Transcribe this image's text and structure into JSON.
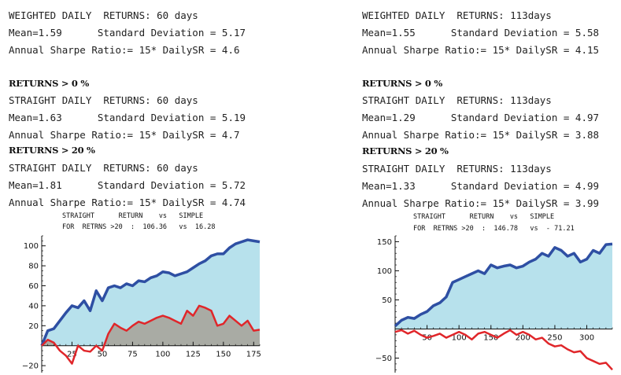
{
  "left": {
    "weighted": {
      "title": "WEIGHTED DAILY  RETURNS: 60 days",
      "line2": "Mean=1.59      Standard Deviation = 5.17",
      "line3": "Annual Sharpe Ratio:= 15* DailySR = 4.6"
    },
    "ret0_head": "RETURNS >  0 %",
    "straight0": {
      "title": "STRAIGHT DAILY  RETURNS: 60 days",
      "line2": "Mean=1.63      Standard Deviation = 5.19",
      "line3": "Annual Sharpe Ratio:= 15* DailySR = 4.7"
    },
    "ret20_head": "RETURNS > 20 %",
    "straight20": {
      "title": "STRAIGHT DAILY  RETURNS: 60 days",
      "line2": "Mean=1.81      Standard Deviation = 5.72",
      "line3": "Annual Sharpe Ratio:= 15* DailySR = 4.74"
    },
    "chart_title1": "STRAIGHT      RETURN    vs   SIMPLE",
    "chart_title2": "FOR  RETRNS >20  :  106.36   vs  16.28"
  },
  "right": {
    "weighted": {
      "title": "WEIGHTED DAILY  RETURNS: 113days",
      "line2": "Mean=1.55      Standard Deviation = 5.58",
      "line3": "Annual Sharpe Ratio:= 15* DailySR = 4.15"
    },
    "ret0_head": "RETURNS >  0 %",
    "straight0": {
      "title": "STRAIGHT DAILY  RETURNS: 113days",
      "line2": "Mean=1.29      Standard Deviation = 4.97",
      "line3": "Annual Sharpe Ratio:= 15* DailySR = 3.88"
    },
    "ret20_head": "RETURNS > 20 %",
    "straight20": {
      "title": "STRAIGHT DAILY  RETURNS: 113days",
      "line2": "Mean=1.33      Standard Deviation = 4.99",
      "line3": "Annual Sharpe Ratio:= 15* DailySR = 3.99"
    },
    "chart_title1": "STRAIGHT      RETURN    vs   SIMPLE",
    "chart_title2": "FOR  RETRNS >20  :  146.78   vs  - 71.21"
  },
  "chart_data": [
    {
      "type": "area",
      "x_ticks": [
        25,
        50,
        75,
        100,
        125,
        150,
        175
      ],
      "y_ticks": [
        -20,
        20,
        40,
        60,
        80,
        100
      ],
      "xlim": [
        0,
        180
      ],
      "ylim": [
        -27,
        110
      ],
      "colors": {
        "straight": "#2e4fa3",
        "simple": "#e0262a",
        "straight_fill": "#b7e1ec",
        "simple_fill": "#a9aba4"
      },
      "series": [
        {
          "x": [
            0,
            5,
            10,
            15,
            20,
            25,
            30,
            35,
            40,
            45,
            50,
            55,
            60,
            65,
            70,
            75,
            80,
            85,
            90,
            95,
            100,
            105,
            110,
            115,
            120,
            125,
            130,
            135,
            140,
            145,
            150,
            155,
            160,
            165,
            170,
            175,
            180
          ],
          "values": [
            0,
            15,
            17,
            25,
            33,
            40,
            38,
            45,
            35,
            55,
            45,
            58,
            60,
            58,
            62,
            60,
            65,
            64,
            68,
            70,
            74,
            73,
            70,
            72,
            74,
            78,
            82,
            85,
            90,
            92,
            92,
            98,
            102,
            104,
            106,
            105,
            104
          ]
        },
        {
          "x": [
            0,
            5,
            10,
            15,
            20,
            25,
            30,
            35,
            40,
            45,
            50,
            55,
            60,
            65,
            70,
            75,
            80,
            85,
            90,
            95,
            100,
            105,
            110,
            115,
            120,
            125,
            130,
            135,
            140,
            145,
            150,
            155,
            160,
            165,
            170,
            175,
            180
          ],
          "values": [
            0,
            6,
            3,
            -5,
            -10,
            -18,
            0,
            -5,
            -6,
            0,
            -5,
            12,
            22,
            18,
            15,
            20,
            24,
            22,
            25,
            28,
            30,
            28,
            25,
            22,
            35,
            30,
            40,
            38,
            35,
            20,
            22,
            30,
            25,
            20,
            25,
            15,
            16
          ]
        }
      ]
    },
    {
      "type": "area",
      "x_ticks": [
        50,
        100,
        150,
        200,
        250,
        300
      ],
      "y_ticks": [
        -50,
        50,
        100,
        150
      ],
      "xlim": [
        0,
        340
      ],
      "ylim": [
        -75,
        160
      ],
      "colors": {
        "straight": "#2e4fa3",
        "simple": "#e0262a",
        "straight_fill": "#b7e1ec"
      },
      "series": [
        {
          "x": [
            0,
            10,
            20,
            30,
            40,
            50,
            60,
            70,
            80,
            90,
            100,
            110,
            120,
            130,
            140,
            150,
            160,
            170,
            180,
            190,
            200,
            210,
            220,
            230,
            240,
            250,
            260,
            270,
            280,
            290,
            300,
            310,
            320,
            330,
            340
          ],
          "values": [
            5,
            15,
            20,
            18,
            25,
            30,
            40,
            45,
            55,
            80,
            85,
            90,
            95,
            100,
            95,
            110,
            105,
            108,
            110,
            105,
            108,
            115,
            120,
            130,
            125,
            140,
            135,
            125,
            130,
            115,
            120,
            135,
            130,
            145,
            146
          ]
        },
        {
          "x": [
            0,
            10,
            20,
            30,
            40,
            50,
            60,
            70,
            80,
            90,
            100,
            110,
            120,
            130,
            140,
            150,
            160,
            170,
            180,
            190,
            200,
            210,
            220,
            230,
            240,
            250,
            260,
            270,
            280,
            290,
            300,
            310,
            320,
            330,
            340
          ],
          "values": [
            -5,
            -2,
            -8,
            -3,
            -10,
            -15,
            -12,
            -8,
            -15,
            -10,
            -5,
            -10,
            -18,
            -8,
            -5,
            -10,
            -15,
            -8,
            -2,
            -10,
            -5,
            -10,
            -18,
            -15,
            -25,
            -30,
            -28,
            -35,
            -40,
            -38,
            -50,
            -55,
            -60,
            -58,
            -70
          ]
        }
      ]
    }
  ]
}
